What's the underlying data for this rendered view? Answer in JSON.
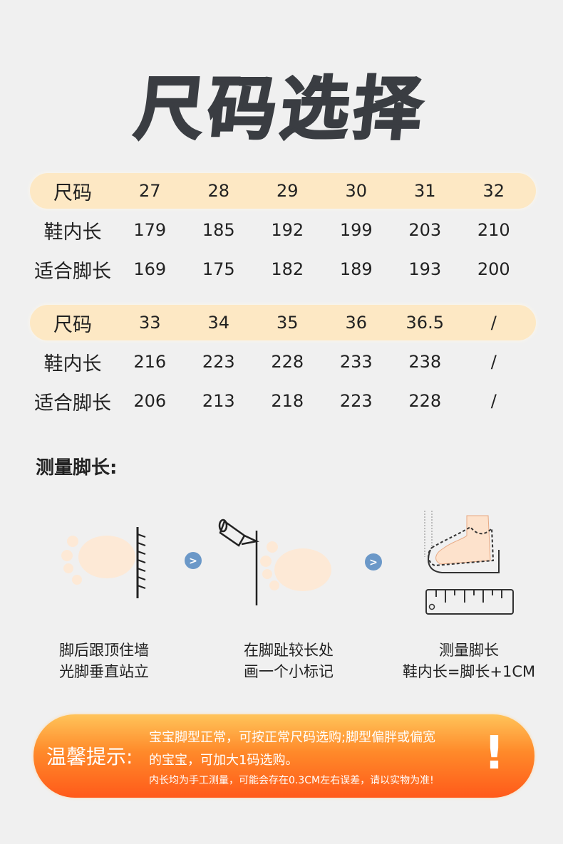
{
  "title": "尺码选择",
  "tables": [
    {
      "header": {
        "label": "尺码",
        "values": [
          "27",
          "28",
          "29",
          "30",
          "31",
          "32"
        ]
      },
      "rows": [
        {
          "label": "鞋内长",
          "values": [
            "179",
            "185",
            "192",
            "199",
            "203",
            "210"
          ]
        },
        {
          "label": "适合脚长",
          "values": [
            "169",
            "175",
            "182",
            "189",
            "193",
            "200"
          ]
        }
      ]
    },
    {
      "header": {
        "label": "尺码",
        "values": [
          "33",
          "34",
          "35",
          "36",
          "36.5",
          "/"
        ]
      },
      "rows": [
        {
          "label": "鞋内长",
          "values": [
            "216",
            "223",
            "228",
            "233",
            "238",
            "/"
          ]
        },
        {
          "label": "适合脚长",
          "values": [
            "206",
            "213",
            "218",
            "223",
            "228",
            "/"
          ]
        }
      ]
    }
  ],
  "measure_title": "测量脚长:",
  "steps": [
    {
      "line1": "脚后跟顶住墙",
      "line2": "光脚垂直站立"
    },
    {
      "line1": "在脚趾较长处",
      "line2": "画一个小标记"
    },
    {
      "line1": "测量脚长",
      "line2": "鞋内长=脚长+1CM"
    }
  ],
  "tip": {
    "title": "温馨提示:",
    "line1": "宝宝脚型正常，可按正常尺码选购;脚型偏胖或偏宽",
    "line2": "的宝宝，可加大1码选购。",
    "line3": "内长均为手工测量，可能会存在0.3CM左右误差，请以实物为准!",
    "mark": "!"
  },
  "colors": {
    "header_bg": "#fde8c4",
    "title": "#3a3d42",
    "tip_orange": "#ff7a22"
  }
}
